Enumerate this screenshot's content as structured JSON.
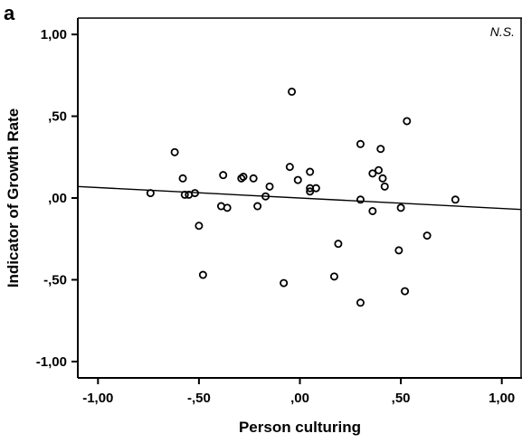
{
  "panel_label": "a",
  "chart_data": {
    "type": "scatter",
    "title": "",
    "xlabel": "Person culturing",
    "ylabel": "Indicator of Growth Rate",
    "annotation": "N.S.",
    "xlim": [
      -1.1,
      1.1
    ],
    "ylim": [
      -1.1,
      1.1
    ],
    "x_ticks": [
      -1.0,
      -0.5,
      0.0,
      0.5,
      1.0
    ],
    "y_ticks": [
      -1.0,
      -0.5,
      0.0,
      0.5,
      1.0
    ],
    "x_tick_labels": [
      "-1,00",
      "-,50",
      ",00",
      ",50",
      "1,00"
    ],
    "y_tick_labels": [
      "-1,00",
      "-,50",
      ",00",
      ",50",
      "1,00"
    ],
    "grid": false,
    "marker": "open-circle",
    "points": [
      {
        "x": -0.74,
        "y": 0.03
      },
      {
        "x": -0.62,
        "y": 0.28
      },
      {
        "x": -0.58,
        "y": 0.12
      },
      {
        "x": -0.57,
        "y": 0.02
      },
      {
        "x": -0.55,
        "y": 0.02
      },
      {
        "x": -0.52,
        "y": 0.03
      },
      {
        "x": -0.5,
        "y": -0.17
      },
      {
        "x": -0.48,
        "y": -0.47
      },
      {
        "x": -0.39,
        "y": -0.05
      },
      {
        "x": -0.38,
        "y": 0.14
      },
      {
        "x": -0.36,
        "y": -0.06
      },
      {
        "x": -0.29,
        "y": 0.12
      },
      {
        "x": -0.28,
        "y": 0.13
      },
      {
        "x": -0.23,
        "y": 0.12
      },
      {
        "x": -0.21,
        "y": -0.05
      },
      {
        "x": -0.17,
        "y": 0.01
      },
      {
        "x": -0.15,
        "y": 0.07
      },
      {
        "x": -0.08,
        "y": -0.52
      },
      {
        "x": -0.05,
        "y": 0.19
      },
      {
        "x": -0.04,
        "y": 0.65
      },
      {
        "x": -0.01,
        "y": 0.11
      },
      {
        "x": 0.05,
        "y": 0.16
      },
      {
        "x": 0.05,
        "y": 0.06
      },
      {
        "x": 0.05,
        "y": 0.04
      },
      {
        "x": 0.08,
        "y": 0.06
      },
      {
        "x": 0.17,
        "y": -0.48
      },
      {
        "x": 0.19,
        "y": -0.28
      },
      {
        "x": 0.3,
        "y": 0.33
      },
      {
        "x": 0.3,
        "y": -0.01
      },
      {
        "x": 0.3,
        "y": -0.64
      },
      {
        "x": 0.36,
        "y": 0.15
      },
      {
        "x": 0.36,
        "y": -0.08
      },
      {
        "x": 0.39,
        "y": 0.17
      },
      {
        "x": 0.4,
        "y": 0.3
      },
      {
        "x": 0.41,
        "y": 0.12
      },
      {
        "x": 0.42,
        "y": 0.07
      },
      {
        "x": 0.49,
        "y": -0.32
      },
      {
        "x": 0.5,
        "y": -0.06
      },
      {
        "x": 0.52,
        "y": -0.57
      },
      {
        "x": 0.53,
        "y": 0.47
      },
      {
        "x": 0.63,
        "y": -0.23
      },
      {
        "x": 0.77,
        "y": -0.01
      }
    ],
    "fit_line": {
      "x": [
        -1.1,
        1.1
      ],
      "y": [
        0.07,
        -0.07
      ]
    },
    "colors": {
      "marker": "#000000",
      "line": "#000000",
      "axes": "#000000"
    }
  }
}
